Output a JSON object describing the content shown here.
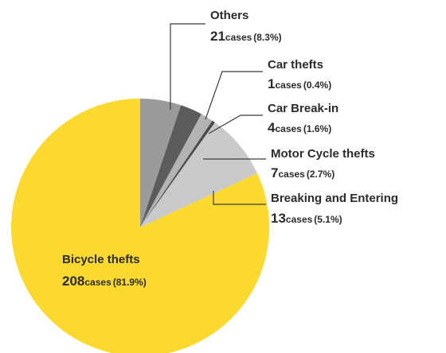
{
  "chart_data": {
    "type": "pie",
    "unit": "cases",
    "slices": [
      {
        "label": "Bicycle thefts",
        "value": 208,
        "percent": "81.9%",
        "color": "#fbd92e"
      },
      {
        "label": "Others",
        "value": 21,
        "percent": "8.3%",
        "color": "#c9c9c9"
      },
      {
        "label": "Car thefts",
        "value": 1,
        "percent": "0.4%",
        "color": "#4a4a4a"
      },
      {
        "label": "Car Break-in",
        "value": 4,
        "percent": "1.6%",
        "color": "#b3b3b3"
      },
      {
        "label": "Motor Cycle thefts",
        "value": 7,
        "percent": "2.7%",
        "color": "#5c5c5c"
      },
      {
        "label": "Breaking and Entering",
        "value": 13,
        "percent": "5.1%",
        "color": "#9a9a9a"
      }
    ]
  }
}
